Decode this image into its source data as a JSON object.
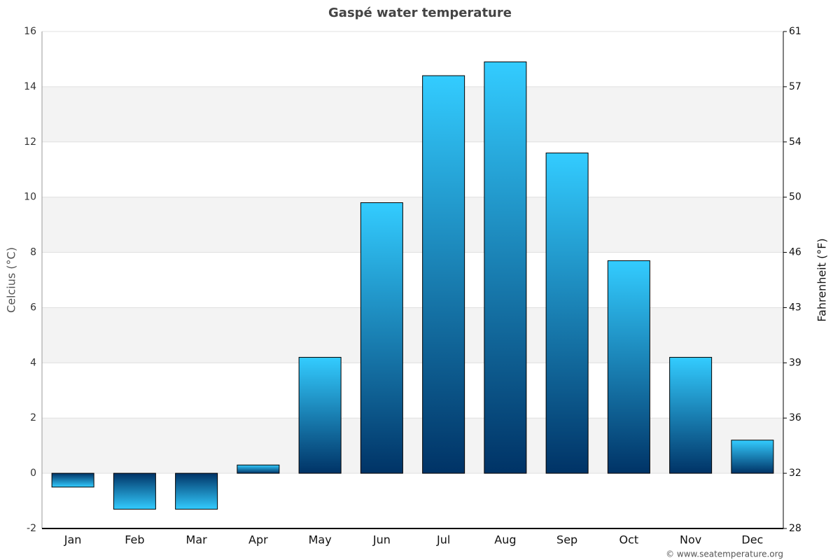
{
  "chart_data": {
    "type": "bar",
    "title": "Gaspé water temperature",
    "categories": [
      "Jan",
      "Feb",
      "Mar",
      "Apr",
      "May",
      "Jun",
      "Jul",
      "Aug",
      "Sep",
      "Oct",
      "Nov",
      "Dec"
    ],
    "values": [
      -0.5,
      -1.3,
      -1.3,
      0.3,
      4.2,
      9.8,
      14.4,
      14.9,
      11.6,
      7.7,
      4.2,
      1.2
    ],
    "ylabel": "Celcius (°C)",
    "y2label": "Fahrenheit (°F)",
    "ylim": [
      -2,
      16
    ],
    "yticks": [
      -2,
      0,
      2,
      4,
      6,
      8,
      10,
      12,
      14,
      16
    ],
    "y2lim": [
      28.4,
      60.8
    ],
    "y2ticks": [
      {
        "value": 28.4,
        "label": "28"
      },
      32,
      {
        "value": 35.6,
        "label": "36"
      },
      {
        "value": 39.2,
        "label": "39"
      },
      {
        "value": 42.8,
        "label": "43"
      },
      {
        "value": 46.4,
        "label": "46"
      },
      50,
      {
        "value": 53.6,
        "label": "54"
      },
      {
        "value": 57.2,
        "label": "57"
      },
      {
        "value": 60.8,
        "label": "61"
      }
    ],
    "grid": true,
    "banded": true,
    "credit": "© www.seatemperature.org"
  }
}
